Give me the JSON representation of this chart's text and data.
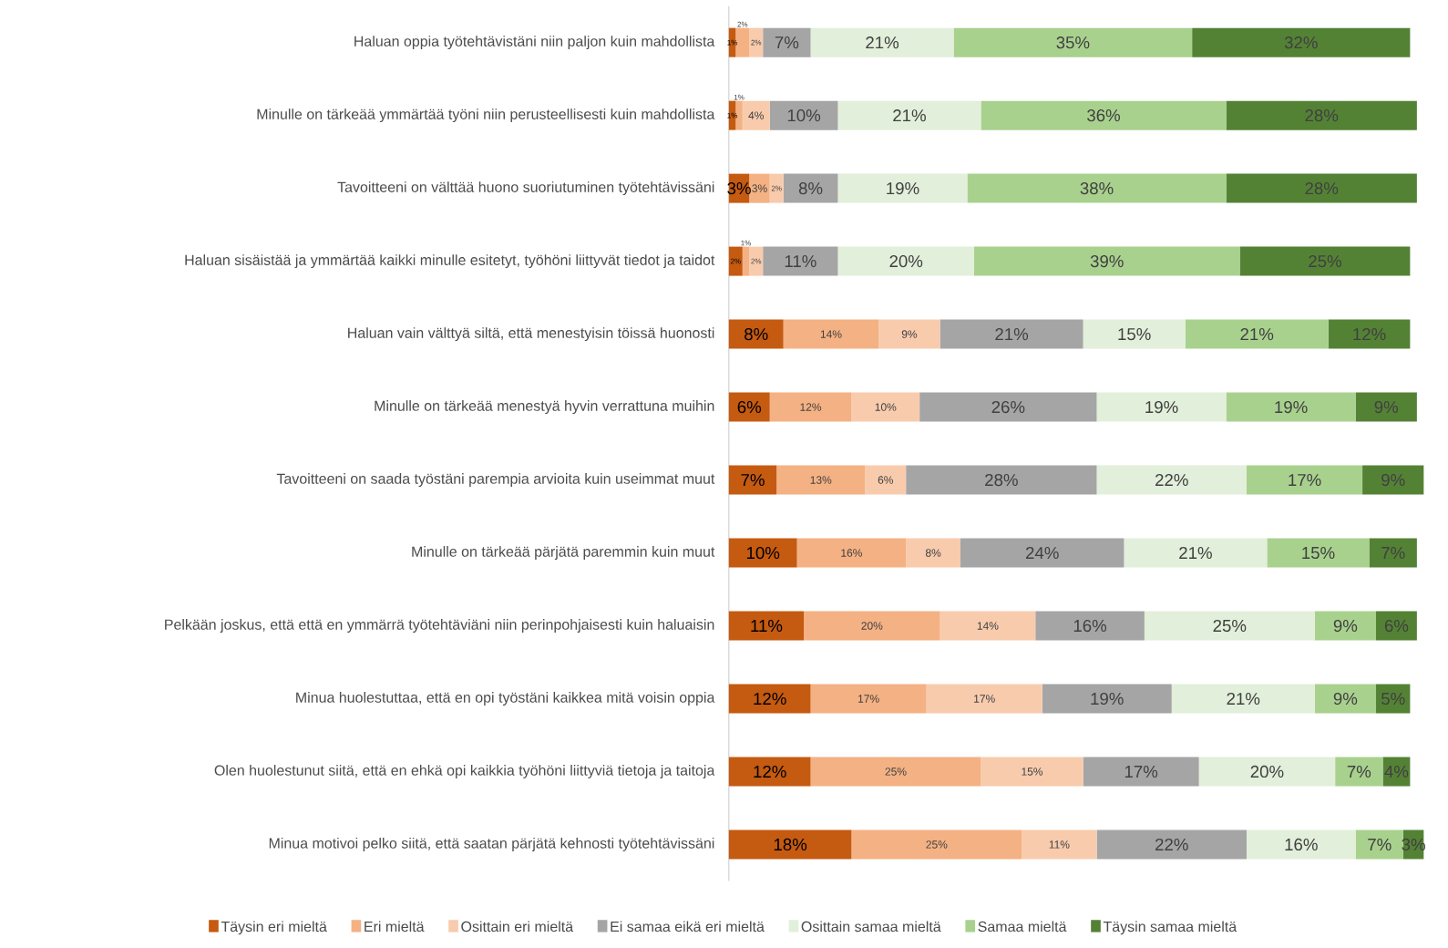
{
  "chart_data": {
    "type": "bar",
    "orientation": "horizontal",
    "stacked": true,
    "legend": "bottom",
    "categories": [
      "Haluan oppia työtehtävistäni niin paljon kuin mahdollista",
      "Minulle on tärkeää ymmärtää työni niin perusteellisesti kuin mahdollista",
      "Tavoitteeni on välttää huono suoriutuminen työtehtävissäni",
      "Haluan sisäistää ja ymmärtää kaikki minulle esitetyt, työhöni liittyvät tiedot ja taidot",
      "Haluan vain välttyä siltä, että menestyisin töissä huonosti",
      "Minulle on tärkeää menestyä hyvin verrattuna muihin",
      "Tavoitteeni on saada työstäni parempia arvioita kuin useimmat muut",
      "Minulle on tärkeää pärjätä paremmin kuin muut",
      "Pelkään joskus, että että en ymmärrä työtehtäviäni niin perinpohjaisesti kuin haluaisin",
      "Minua huolestuttaa, että en opi työstäni kaikkea mitä voisin oppia",
      "Olen huolestunut siitä, että en ehkä opi kaikkia työhöni liittyviä tietoja ja taitoja",
      "Minua motivoi pelko siitä, että saatan pärjätä kehnosti työtehtävissäni"
    ],
    "series": [
      {
        "name": "Täysin eri mieltä",
        "color": "#c55a11",
        "values": [
          1,
          1,
          3,
          2,
          8,
          6,
          7,
          10,
          11,
          12,
          12,
          18
        ],
        "value_labels": [
          "1%",
          "1%",
          "3%",
          "2%",
          "8%",
          "6%",
          "7%",
          "10%",
          "11%",
          "12%",
          "12%",
          "18%"
        ]
      },
      {
        "name": "Eri mieltä",
        "color": "#f4b183",
        "values": [
          2,
          1,
          3,
          1,
          14,
          12,
          13,
          16,
          20,
          17,
          25,
          25
        ],
        "value_labels": [
          "2%",
          "1%",
          "3%",
          "1%",
          "14%",
          "12%",
          "13%",
          "16%",
          "20%",
          "17%",
          "25%",
          "25%"
        ]
      },
      {
        "name": "Osittain eri mieltä",
        "color": "#f8cbad",
        "values": [
          2,
          4,
          2,
          2,
          9,
          10,
          6,
          8,
          14,
          17,
          15,
          11
        ],
        "value_labels": [
          "2%",
          "4%",
          "2%",
          "2%",
          "9%",
          "10%",
          "6%",
          "8%",
          "14%",
          "17%",
          "15%",
          "11%"
        ]
      },
      {
        "name": "Ei samaa eikä eri mieltä",
        "color": "#a5a5a5",
        "values": [
          7,
          10,
          8,
          11,
          21,
          26,
          28,
          24,
          16,
          19,
          17,
          22
        ],
        "value_labels": [
          "7%",
          "10%",
          "8%",
          "11%",
          "21%",
          "26%",
          "28%",
          "24%",
          "16%",
          "19%",
          "17%",
          "22%"
        ]
      },
      {
        "name": "Osittain samaa mieltä",
        "color": "#e2efda",
        "values": [
          21,
          21,
          19,
          20,
          15,
          19,
          22,
          21,
          25,
          21,
          20,
          16
        ],
        "value_labels": [
          "21%",
          "21%",
          "19%",
          "20%",
          "15%",
          "19%",
          "22%",
          "21%",
          "25%",
          "21%",
          "20%",
          "16%"
        ]
      },
      {
        "name": "Samaa mieltä",
        "color": "#a9d18e",
        "values": [
          35,
          36,
          38,
          39,
          21,
          19,
          17,
          15,
          9,
          9,
          7,
          7
        ],
        "value_labels": [
          "35%",
          "36%",
          "38%",
          "39%",
          "21%",
          "19%",
          "17%",
          "15%",
          "9%",
          "9%",
          "7%",
          "7%"
        ]
      },
      {
        "name": "Täysin samaa mieltä",
        "color": "#548235",
        "values": [
          32,
          28,
          28,
          25,
          12,
          9,
          9,
          7,
          6,
          5,
          4,
          3
        ],
        "value_labels": [
          "32%",
          "28%",
          "28%",
          "25%",
          "12%",
          "9%",
          "9%",
          "7%",
          "6%",
          "5%",
          "4%",
          "3%"
        ]
      }
    ]
  }
}
